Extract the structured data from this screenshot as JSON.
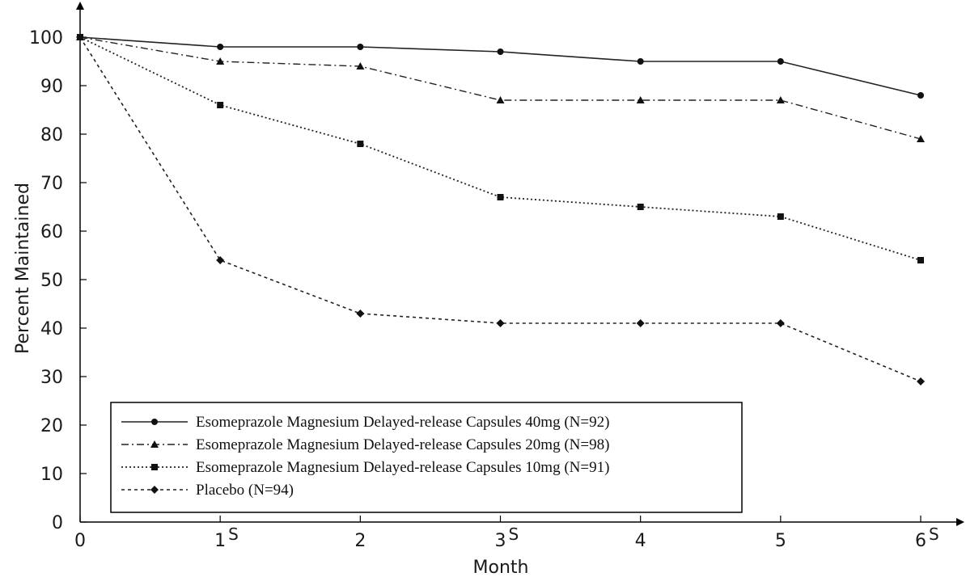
{
  "chart_data": {
    "type": "line",
    "xlabel": "Month",
    "ylabel": "Percent Maintained",
    "xlim": [
      0,
      6
    ],
    "ylim": [
      0,
      100
    ],
    "x": [
      0,
      1,
      2,
      3,
      4,
      5,
      6
    ],
    "x_ticks": [
      "0",
      "1",
      "2",
      "3",
      "4",
      "5",
      "6"
    ],
    "y_ticks": [
      "0",
      "10",
      "20",
      "30",
      "40",
      "50",
      "60",
      "70",
      "80",
      "90",
      "100"
    ],
    "significance_marks": [
      {
        "x": 1,
        "label": "S"
      },
      {
        "x": 3,
        "label": "S"
      },
      {
        "x": 6,
        "label": "S"
      }
    ],
    "grid": false,
    "legend_position": "bottom-left",
    "series": [
      {
        "name": "Esomeprazole Magnesium Delayed-release Capsules 40mg (N=92)",
        "line_style": "solid",
        "marker": "circle",
        "values": [
          100,
          98,
          98,
          97,
          95,
          95,
          88
        ]
      },
      {
        "name": "Esomeprazole Magnesium Delayed-release Capsules 20mg (N=98)",
        "line_style": "dashdot",
        "marker": "triangle",
        "values": [
          100,
          95,
          94,
          87,
          87,
          87,
          79
        ]
      },
      {
        "name": "Esomeprazole Magnesium Delayed-release Capsules 10mg (N=91)",
        "line_style": "dotted",
        "marker": "square",
        "values": [
          100,
          86,
          78,
          67,
          65,
          63,
          54
        ]
      },
      {
        "name": "Placebo (N=94)",
        "line_style": "dashed",
        "marker": "diamond",
        "values": [
          100,
          54,
          43,
          41,
          41,
          41,
          29
        ]
      }
    ]
  }
}
